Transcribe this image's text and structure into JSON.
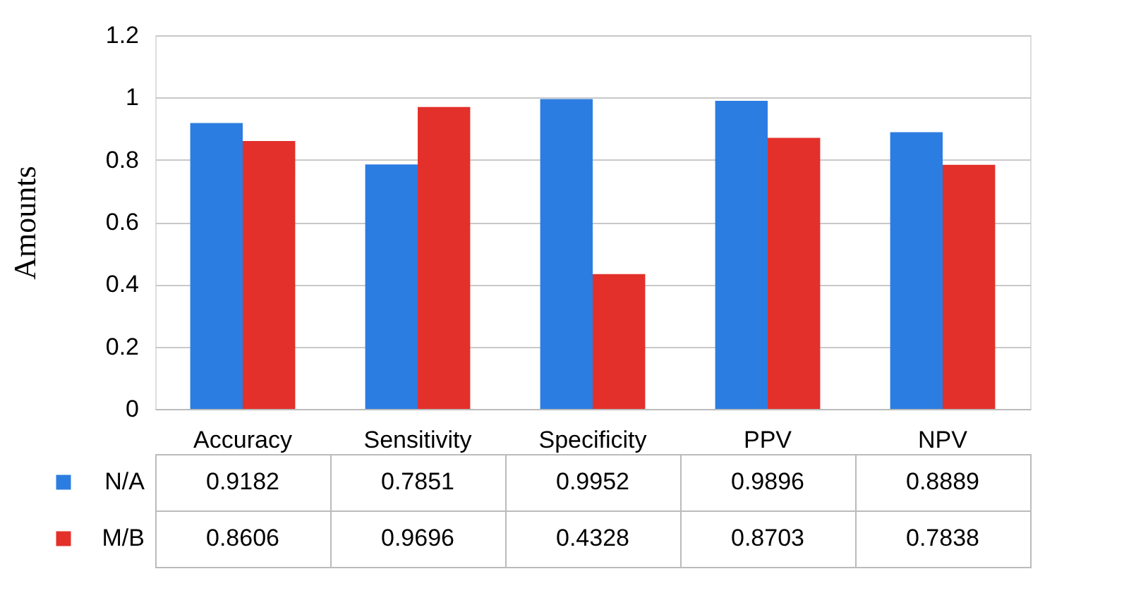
{
  "chart_data": {
    "type": "bar",
    "ylabel": "Amounts",
    "categories": [
      "Accuracy",
      "Sensitivity",
      "Specificity",
      "PPV",
      "NPV"
    ],
    "series": [
      {
        "name": "N/A",
        "color": "#2b7de1",
        "values": [
          0.9182,
          0.7851,
          0.9952,
          0.9896,
          0.8889
        ]
      },
      {
        "name": "M/B",
        "color": "#e3302b",
        "values": [
          0.8606,
          0.9696,
          0.4328,
          0.8703,
          0.7838
        ]
      }
    ],
    "ylim": [
      0,
      1.2
    ],
    "yticks": [
      0,
      0.2,
      0.4,
      0.6,
      0.8,
      1,
      1.2
    ],
    "grid": "y",
    "legend": "bottom",
    "data_labels": true
  }
}
